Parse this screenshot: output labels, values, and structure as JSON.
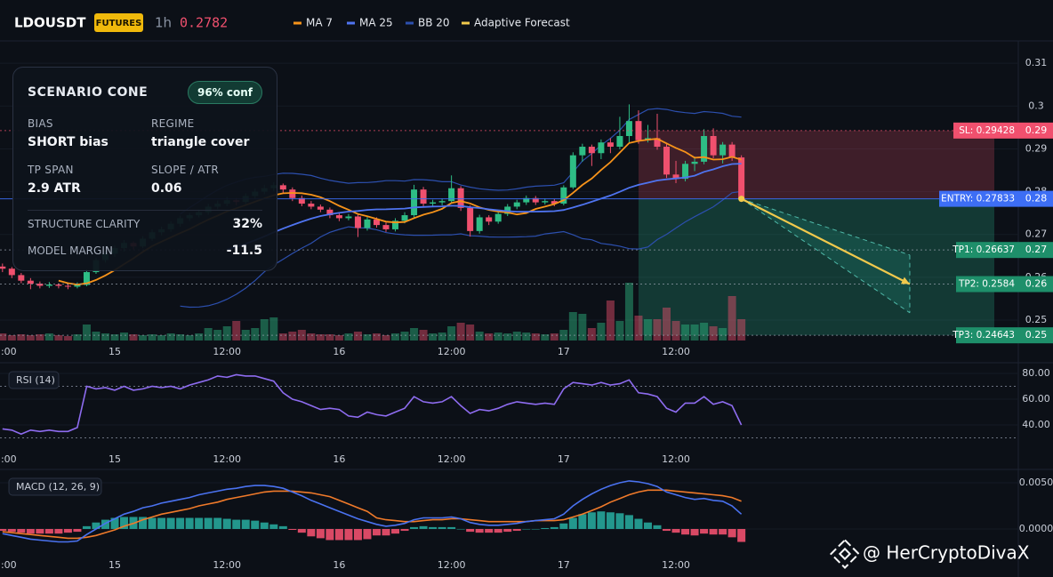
{
  "header": {
    "symbol": "LDOUSDT",
    "badge": "FUTURES",
    "interval": "1h",
    "price": "0.2782"
  },
  "scenario_panel": {
    "title": "SCENARIO CONE",
    "confidence": "96% conf",
    "fields": [
      {
        "label": "BIAS",
        "value": "SHORT bias"
      },
      {
        "label": "REGIME",
        "value": "triangle cover"
      },
      {
        "label": "TP SPAN",
        "value": "2.9 ATR"
      },
      {
        "label": "SLOPE / ATR",
        "value": "0.06"
      }
    ],
    "metrics": [
      {
        "label": "STRUCTURE CLARITY",
        "value": "32%"
      },
      {
        "label": "MODEL MARGIN",
        "value": "-11.5"
      }
    ]
  },
  "watermark": "@ HerCryptoDivaX",
  "chart_data": {
    "type": "candlestick",
    "up_color": "#2ebd85",
    "down_color": "#f0506e",
    "xticks": [
      {
        "value": 0,
        "label": "12:00"
      },
      {
        "value": 12,
        "label": "15"
      },
      {
        "value": 24,
        "label": "12:00"
      },
      {
        "value": 36,
        "label": "16"
      },
      {
        "value": 48,
        "label": "12:00"
      },
      {
        "value": 60,
        "label": "17"
      },
      {
        "value": 72,
        "label": "12:00"
      }
    ],
    "ylim": [
      0.2448,
      0.3144
    ],
    "yticks": [
      0.25,
      0.26,
      0.27,
      0.28,
      0.29,
      0.3,
      0.31
    ],
    "overlays": [
      {
        "name": "MA 7",
        "color": "#f7931a"
      },
      {
        "name": "MA 25",
        "color": "#4f74f0"
      },
      {
        "name": "BB 20",
        "color": "#2c4fae"
      },
      {
        "name": "Adaptive Forecast",
        "color": "#f2c94c"
      }
    ],
    "candles": [
      [
        0.2625,
        0.2632,
        0.2612,
        0.262
      ],
      [
        0.262,
        0.2624,
        0.2598,
        0.2605
      ],
      [
        0.2605,
        0.261,
        0.2586,
        0.2592
      ],
      [
        0.2592,
        0.2598,
        0.2572,
        0.2585
      ],
      [
        0.2585,
        0.259,
        0.2574,
        0.258
      ],
      [
        0.258,
        0.2589,
        0.2575,
        0.2583
      ],
      [
        0.2583,
        0.2586,
        0.2574,
        0.258
      ],
      [
        0.258,
        0.2585,
        0.2572,
        0.2578
      ],
      [
        0.2578,
        0.2588,
        0.2574,
        0.2582
      ],
      [
        0.2582,
        0.2618,
        0.2579,
        0.2612
      ],
      [
        0.2612,
        0.2646,
        0.2608,
        0.264
      ],
      [
        0.264,
        0.2662,
        0.2634,
        0.2655
      ],
      [
        0.2655,
        0.2674,
        0.2648,
        0.2668
      ],
      [
        0.2668,
        0.2687,
        0.266,
        0.268
      ],
      [
        0.268,
        0.2684,
        0.2665,
        0.2672
      ],
      [
        0.2672,
        0.2696,
        0.2668,
        0.269
      ],
      [
        0.269,
        0.2712,
        0.2685,
        0.2705
      ],
      [
        0.2705,
        0.2718,
        0.2698,
        0.2712
      ],
      [
        0.2712,
        0.2731,
        0.2706,
        0.2725
      ],
      [
        0.2725,
        0.2744,
        0.2718,
        0.2738
      ],
      [
        0.2738,
        0.275,
        0.2731,
        0.2745
      ],
      [
        0.2745,
        0.2758,
        0.274,
        0.2752
      ],
      [
        0.2752,
        0.2772,
        0.2746,
        0.2765
      ],
      [
        0.2765,
        0.2779,
        0.2759,
        0.2772
      ],
      [
        0.2772,
        0.2788,
        0.2766,
        0.278
      ],
      [
        0.278,
        0.2785,
        0.2768,
        0.2776
      ],
      [
        0.2776,
        0.2796,
        0.2771,
        0.279
      ],
      [
        0.279,
        0.2807,
        0.2784,
        0.28
      ],
      [
        0.28,
        0.2816,
        0.2794,
        0.2808
      ],
      [
        0.2808,
        0.2822,
        0.2801,
        0.2815
      ],
      [
        0.2815,
        0.2819,
        0.2798,
        0.2805
      ],
      [
        0.2805,
        0.281,
        0.2778,
        0.2785
      ],
      [
        0.2785,
        0.2791,
        0.2766,
        0.2772
      ],
      [
        0.2772,
        0.2778,
        0.2759,
        0.2765
      ],
      [
        0.2765,
        0.277,
        0.2752,
        0.2758
      ],
      [
        0.2758,
        0.2763,
        0.2738,
        0.2745
      ],
      [
        0.2745,
        0.275,
        0.2731,
        0.2738
      ],
      [
        0.2738,
        0.2748,
        0.2733,
        0.2742
      ],
      [
        0.2742,
        0.2746,
        0.2694,
        0.2715
      ],
      [
        0.2715,
        0.2741,
        0.2709,
        0.2735
      ],
      [
        0.2735,
        0.274,
        0.2716,
        0.2722
      ],
      [
        0.2722,
        0.2728,
        0.2706,
        0.2712
      ],
      [
        0.2712,
        0.2738,
        0.2707,
        0.2732
      ],
      [
        0.2732,
        0.2752,
        0.2726,
        0.2745
      ],
      [
        0.2745,
        0.2816,
        0.274,
        0.2805
      ],
      [
        0.2805,
        0.2811,
        0.2766,
        0.2772
      ],
      [
        0.2772,
        0.2781,
        0.2765,
        0.2775
      ],
      [
        0.2775,
        0.2784,
        0.2768,
        0.2778
      ],
      [
        0.2778,
        0.2838,
        0.2772,
        0.2808
      ],
      [
        0.2808,
        0.2813,
        0.2755,
        0.2762
      ],
      [
        0.2762,
        0.2768,
        0.2695,
        0.2708
      ],
      [
        0.2708,
        0.2746,
        0.2702,
        0.274
      ],
      [
        0.274,
        0.2745,
        0.2722,
        0.273
      ],
      [
        0.273,
        0.2754,
        0.2725,
        0.2748
      ],
      [
        0.2748,
        0.2771,
        0.2743,
        0.2765
      ],
      [
        0.2765,
        0.2781,
        0.2759,
        0.2775
      ],
      [
        0.2775,
        0.2791,
        0.2769,
        0.2785
      ],
      [
        0.2785,
        0.279,
        0.2769,
        0.2775
      ],
      [
        0.2775,
        0.2784,
        0.277,
        0.2778
      ],
      [
        0.2778,
        0.2783,
        0.2766,
        0.2772
      ],
      [
        0.2772,
        0.2815,
        0.2768,
        0.281
      ],
      [
        0.281,
        0.2892,
        0.2806,
        0.2885
      ],
      [
        0.2885,
        0.2912,
        0.287,
        0.2905
      ],
      [
        0.2905,
        0.291,
        0.286,
        0.289
      ],
      [
        0.289,
        0.2922,
        0.2876,
        0.2915
      ],
      [
        0.2915,
        0.2925,
        0.289,
        0.2905
      ],
      [
        0.2905,
        0.2975,
        0.2899,
        0.293
      ],
      [
        0.293,
        0.3004,
        0.2915,
        0.2965
      ],
      [
        0.2965,
        0.299,
        0.2912,
        0.292
      ],
      [
        0.292,
        0.2956,
        0.2915,
        0.2925
      ],
      [
        0.2925,
        0.2982,
        0.2898,
        0.2905
      ],
      [
        0.2905,
        0.2912,
        0.2832,
        0.284
      ],
      [
        0.284,
        0.2872,
        0.282,
        0.283
      ],
      [
        0.283,
        0.2872,
        0.2824,
        0.2865
      ],
      [
        0.2865,
        0.2882,
        0.2848,
        0.287
      ],
      [
        0.287,
        0.2946,
        0.2864,
        0.293
      ],
      [
        0.293,
        0.2948,
        0.2878,
        0.2885
      ],
      [
        0.2885,
        0.2916,
        0.2866,
        0.291
      ],
      [
        0.291,
        0.2916,
        0.2872,
        0.288
      ],
      [
        0.288,
        0.2885,
        0.2776,
        0.2783
      ]
    ],
    "volume_ylim": [
      0,
      100
    ],
    "volume": [
      8,
      6,
      7,
      6,
      7,
      8,
      6,
      5,
      7,
      18,
      10,
      8,
      7,
      9,
      7,
      6,
      7,
      6,
      8,
      7,
      6,
      8,
      14,
      12,
      16,
      22,
      12,
      14,
      24,
      26,
      8,
      10,
      12,
      8,
      7,
      7,
      6,
      8,
      10,
      7,
      8,
      6,
      8,
      10,
      14,
      12,
      8,
      9,
      16,
      20,
      18,
      10,
      8,
      9,
      8,
      10,
      9,
      8,
      7,
      8,
      12,
      32,
      30,
      14,
      20,
      45,
      22,
      65,
      28,
      24,
      24,
      37,
      22,
      18,
      18,
      20,
      16,
      14,
      50,
      24
    ],
    "levels": [
      {
        "label": "SL: 0.29428",
        "value": 0.29428,
        "axis_label": "0.29",
        "color": "#f0506e"
      },
      {
        "label": "ENTRY: 0.27833",
        "value": 0.27833,
        "axis_label": "0.28",
        "color": "#3d6ef5"
      },
      {
        "label": "TP1: 0.26637",
        "value": 0.26637,
        "axis_label": "0.27",
        "color": "#1e8f6a"
      },
      {
        "label": "TP2: 0.2584",
        "value": 0.2584,
        "axis_label": "0.26",
        "color": "#1e8f6a"
      },
      {
        "label": "TP3: 0.24643",
        "value": 0.24643,
        "axis_label": "0.25",
        "color": "#1e8f6a"
      }
    ],
    "trade_zone_start": 68,
    "forecast": {
      "x": [
        79,
        97
      ],
      "values": [
        0.27833,
        0.2584
      ],
      "upper": [
        0.27833,
        0.2652
      ],
      "lower": [
        0.27833,
        0.2517
      ]
    },
    "rsi": {
      "title": "RSI (14)",
      "color": "#8e6cf0",
      "ylim": [
        21.4,
        86.9
      ],
      "yticks": [
        {
          "value": 80,
          "label": "80.00"
        },
        {
          "value": 60,
          "label": "60.00"
        },
        {
          "value": 40,
          "label": "40.00"
        }
      ],
      "bands": [
        70,
        30
      ],
      "values": [
        37,
        36,
        33,
        36,
        35,
        36,
        35,
        35,
        38,
        70,
        68,
        69,
        67,
        70,
        67,
        68,
        70,
        69,
        70,
        68,
        71,
        73,
        75,
        78,
        77,
        79,
        78,
        78,
        76,
        74,
        65,
        60,
        58,
        55,
        52,
        53,
        52,
        47,
        46,
        50,
        48,
        47,
        50,
        53,
        62,
        58,
        57,
        58,
        62,
        55,
        49,
        52,
        51,
        53,
        56,
        58,
        57,
        56,
        57,
        56,
        68,
        73,
        72,
        71,
        73,
        71,
        72,
        75,
        65,
        64,
        62,
        53,
        50,
        57,
        57,
        62,
        56,
        58,
        55,
        40
      ]
    },
    "macd": {
      "title": "MACD (12, 26, 9)",
      "ylim": [
        -0.00433,
        0.00625
      ],
      "yticks": [
        {
          "value": 0.005,
          "label": "0.0050"
        },
        {
          "value": 0,
          "label": "0.0000"
        }
      ],
      "macd": {
        "color": "#4a72f0",
        "values": [
          -0.0005,
          -0.0007,
          -0.0009,
          -0.0011,
          -0.0012,
          -0.0013,
          -0.0014,
          -0.0014,
          -0.0013,
          -0.0006,
          0,
          0.0006,
          0.0011,
          0.0016,
          0.0019,
          0.0023,
          0.0025,
          0.0028,
          0.003,
          0.0032,
          0.0034,
          0.0037,
          0.0039,
          0.0041,
          0.0043,
          0.0044,
          0.0046,
          0.0047,
          0.0047,
          0.0046,
          0.0044,
          0.004,
          0.0036,
          0.0031,
          0.0027,
          0.0023,
          0.0019,
          0.0015,
          0.0011,
          0.0008,
          0.0005,
          0.0003,
          0.0004,
          0.0006,
          0.001,
          0.0012,
          0.0012,
          0.0012,
          0.0013,
          0.0011,
          0.0007,
          0.0005,
          0.0004,
          0.0004,
          0.0005,
          0.0006,
          0.0008,
          0.0009,
          0.001,
          0.0011,
          0.0016,
          0.0025,
          0.0032,
          0.0038,
          0.0043,
          0.0047,
          0.005,
          0.0052,
          0.0051,
          0.0049,
          0.0046,
          0.004,
          0.0037,
          0.0034,
          0.0032,
          0.0033,
          0.0031,
          0.003,
          0.0025,
          0.0016
        ]
      },
      "signal": {
        "color": "#f07a2a",
        "values": [
          -0.0003,
          -0.0004,
          -0.0005,
          -0.0006,
          -0.0007,
          -0.0008,
          -0.0009,
          -0.001,
          -0.001,
          -0.0009,
          -0.0007,
          -0.0004,
          -0.0001,
          0.0003,
          0.0006,
          0.001,
          0.0013,
          0.0016,
          0.0018,
          0.002,
          0.0022,
          0.0025,
          0.0027,
          0.0029,
          0.0032,
          0.0034,
          0.0036,
          0.0038,
          0.004,
          0.0041,
          0.0041,
          0.0041,
          0.004,
          0.0039,
          0.0037,
          0.0035,
          0.0031,
          0.0027,
          0.0023,
          0.0019,
          0.0012,
          0.001,
          0.0009,
          0.0008,
          0.0008,
          0.0009,
          0.001,
          0.001,
          0.0011,
          0.0011,
          0.001,
          0.0009,
          0.0008,
          0.0008,
          0.0008,
          0.0008,
          0.0008,
          0.0009,
          0.0009,
          0.0009,
          0.001,
          0.0013,
          0.0016,
          0.002,
          0.0024,
          0.0029,
          0.0033,
          0.0037,
          0.004,
          0.0042,
          0.0042,
          0.0042,
          0.0041,
          0.004,
          0.0039,
          0.0038,
          0.0037,
          0.0036,
          0.0034,
          0.003
        ]
      },
      "histogram": [
        -0.0002,
        -0.0003,
        -0.0004,
        -0.0005,
        -0.0005,
        -0.0005,
        -0.0005,
        -0.0004,
        -0.0003,
        0.0003,
        0.0007,
        0.001,
        0.0012,
        0.0013,
        0.0013,
        0.0013,
        0.0012,
        0.0012,
        0.0012,
        0.0012,
        0.0012,
        0.0012,
        0.0012,
        0.0012,
        0.0011,
        0.001,
        0.001,
        0.0009,
        0.0007,
        0.0005,
        0.0003,
        -0.0001,
        -0.0004,
        -0.0008,
        -0.001,
        -0.0012,
        -0.0012,
        -0.0012,
        -0.0012,
        -0.0011,
        -0.0007,
        -0.0007,
        -0.0005,
        -0.0002,
        0.0002,
        0.0003,
        0.0002,
        0.0002,
        0.0002,
        0,
        -0.0003,
        -0.0004,
        -0.0004,
        -0.0004,
        -0.0003,
        -0.0002,
        0,
        0,
        0.0001,
        0.0002,
        0.0006,
        0.0012,
        0.0016,
        0.0018,
        0.0019,
        0.0018,
        0.0017,
        0.0015,
        0.0011,
        0.0007,
        0.0004,
        -0.0002,
        -0.0004,
        -0.0006,
        -0.0007,
        -0.0005,
        -0.0006,
        -0.0006,
        -0.0009,
        -0.0014
      ]
    }
  }
}
